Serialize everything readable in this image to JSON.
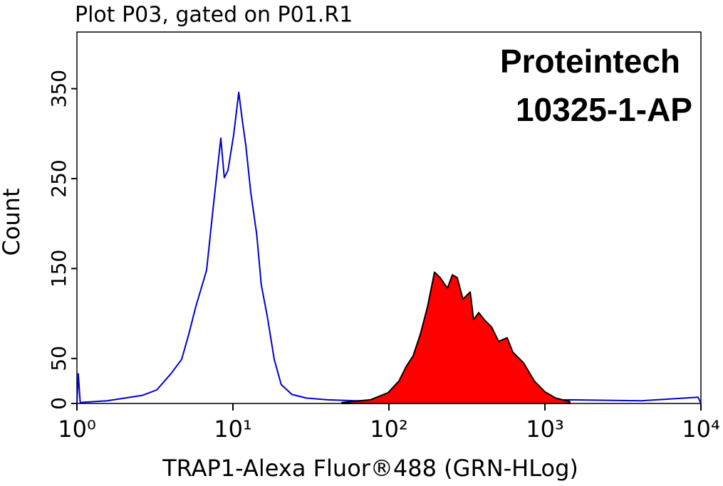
{
  "chart_data": {
    "type": "line",
    "title": "Plot P03, gated on P01.R1",
    "annotations": [
      "Proteintech",
      "10325-1-AP"
    ],
    "x_label": "TRAP1-Alexa Fluor®488 (GRN-HLog)",
    "y_label": "Count",
    "log_x": true,
    "xlim": [
      1,
      10000
    ],
    "xticks": [
      {
        "value": 1,
        "label": "10⁰"
      },
      {
        "value": 10,
        "label": "10¹"
      },
      {
        "value": 100,
        "label": "10²"
      },
      {
        "value": 1000,
        "label": "10³"
      },
      {
        "value": 10000,
        "label": "10⁴"
      }
    ],
    "ylim": [
      0,
      413
    ],
    "yticks": [
      0,
      50,
      150,
      250,
      350
    ],
    "series": [
      {
        "color": "#0000cc",
        "x": [
          1,
          1.02,
          1.05,
          1.56,
          2.63,
          3.25,
          4.0,
          4.69,
          5.21,
          5.79,
          6.78,
          7.53,
          8.36,
          8.81,
          9.29,
          10.1,
          10.9,
          11.5,
          12.1,
          13.0,
          14.2,
          15.2,
          16.6,
          18.4,
          20.4,
          23.9,
          29.5,
          40.5,
          61.7,
          104,
          177,
          505,
          1445,
          4130,
          9590,
          10000
        ],
        "values": [
          0,
          33,
          1,
          3,
          9,
          15,
          33,
          49,
          77,
          108,
          148,
          223,
          295,
          251,
          259,
          298,
          346,
          314,
          287,
          235,
          188,
          132,
          97,
          49,
          21,
          10,
          6,
          4,
          3,
          4,
          2,
          3,
          4,
          3,
          7,
          0
        ]
      },
      {
        "color": "#000000",
        "fill": "#ff0000",
        "x": [
          50,
          76,
          98.9,
          116,
          129,
          143,
          159,
          177,
          196,
          213,
          237,
          255,
          274,
          298,
          332,
          349,
          376,
          409,
          455,
          505,
          573,
          623,
          730,
          855,
          1000,
          1170,
          1445
        ],
        "values": [
          1,
          4,
          12,
          25,
          41,
          53,
          77,
          108,
          146,
          140,
          128,
          143,
          140,
          116,
          124,
          93,
          101,
          93,
          85,
          69,
          73,
          57,
          45,
          25,
          13,
          6,
          2
        ]
      }
    ]
  }
}
